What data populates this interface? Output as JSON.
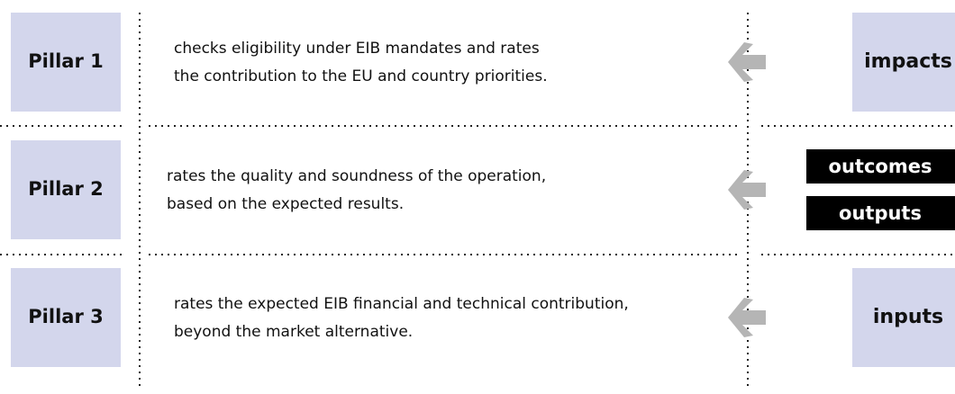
{
  "rows": [
    {
      "pillar": "Pillar 1",
      "description": [
        "checks eligibility under EIB mandates and rates",
        "the contribution to the EU and country priorities."
      ],
      "results": [
        "impacts"
      ]
    },
    {
      "pillar": "Pillar 2",
      "description": [
        "rates the quality and soundness of the operation,",
        "based on the expected results."
      ],
      "results": [
        "outcomes",
        "outputs"
      ]
    },
    {
      "pillar": "Pillar 3",
      "description": [
        "rates the expected EIB financial and technical contribution,",
        "beyond the market alternative."
      ],
      "results": [
        "inputs"
      ]
    }
  ]
}
